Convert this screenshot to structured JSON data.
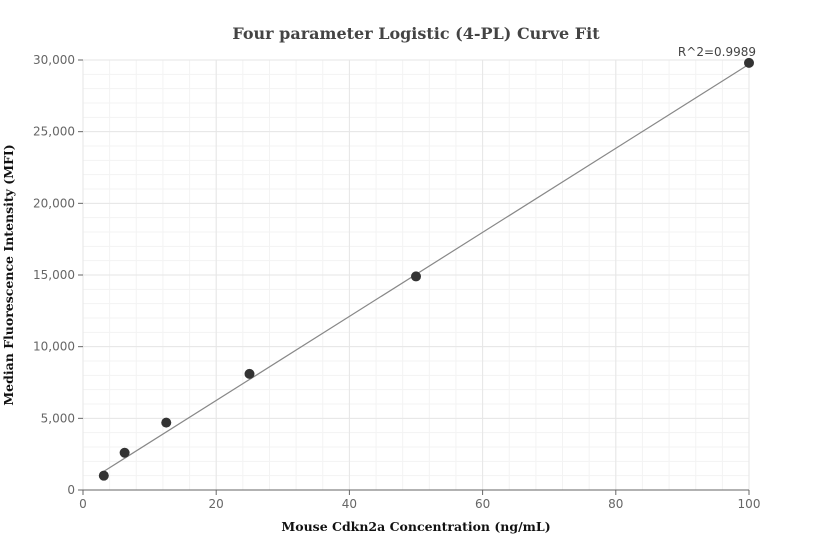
{
  "chart_data": {
    "type": "scatter",
    "title": "Four parameter Logistic (4-PL) Curve Fit",
    "xlabel": "Mouse Cdkn2a Concentration (ng/mL)",
    "ylabel": "Median Fluorescence Intensity (MFI)",
    "xlim": [
      0,
      100
    ],
    "ylim": [
      0,
      30000
    ],
    "xticks": [
      0,
      20,
      40,
      60,
      80,
      100
    ],
    "yticks": [
      0,
      5000,
      10000,
      15000,
      20000,
      25000,
      30000
    ],
    "xtick_labels": [
      "0",
      "20",
      "40",
      "60",
      "80",
      "100"
    ],
    "ytick_labels": [
      "0",
      "5,000",
      "10,000",
      "15,000",
      "20,000",
      "25,000",
      "30,000"
    ],
    "points": [
      {
        "x": 3.125,
        "y": 1000
      },
      {
        "x": 6.25,
        "y": 2600
      },
      {
        "x": 12.5,
        "y": 4700
      },
      {
        "x": 25,
        "y": 8100
      },
      {
        "x": 50,
        "y": 14900
      },
      {
        "x": 100,
        "y": 29800
      }
    ],
    "fit_line": {
      "x": [
        3.125,
        100
      ],
      "y": [
        1300,
        29700
      ]
    },
    "annotation": "R^2=0.9989",
    "grid": true,
    "colors": {
      "point": "#333333",
      "line": "#888888",
      "grid": "#e6e6e6"
    }
  }
}
